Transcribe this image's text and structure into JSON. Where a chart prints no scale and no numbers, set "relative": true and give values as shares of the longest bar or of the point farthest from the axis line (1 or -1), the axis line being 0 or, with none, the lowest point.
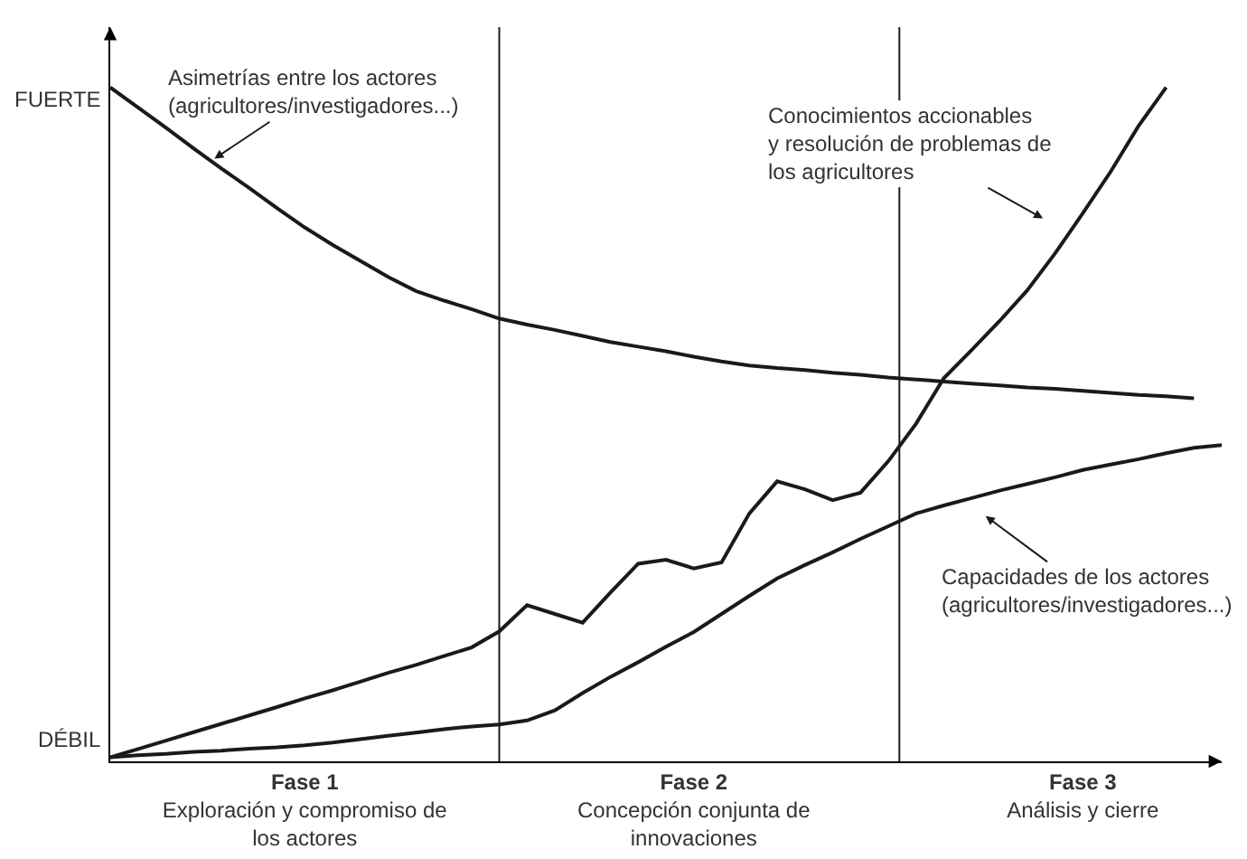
{
  "chart_data": {
    "type": "line",
    "relative": true,
    "tick_labels": "x",
    "marker": "none",
    "line_style": "solid",
    "categories": [
      null,
      null,
      null,
      null,
      null,
      null,
      null,
      "Fase 1\nExploración y compromiso de\nlos actores",
      null,
      null,
      null,
      null,
      null,
      null,
      null,
      null,
      null,
      null,
      null,
      null,
      null,
      "Fase 2\nConcepción conjunta de\ninnovaciones",
      null,
      null,
      null,
      null,
      null,
      null,
      null,
      null,
      null,
      null,
      null,
      null,
      null,
      "Fase 3\nAnálisis y cierre",
      null,
      null,
      null,
      null,
      null
    ],
    "series": [
      {
        "color": "#1a1a1a",
        "values": [
          1.0,
          0.97,
          0.94,
          0.909,
          0.879,
          0.85,
          0.82,
          0.791,
          0.765,
          0.741,
          0.717,
          0.696,
          0.682,
          0.669,
          0.655,
          0.646,
          0.638,
          0.629,
          0.62,
          0.613,
          0.606,
          0.598,
          0.591,
          0.585,
          0.581,
          0.578,
          0.574,
          0.571,
          0.567,
          0.564,
          0.561,
          0.558,
          0.555,
          0.552,
          0.55,
          0.547,
          0.544,
          0.541,
          0.539,
          0.536,
          null
        ]
      },
      {
        "color": "#1a1a1a",
        "values": [
          0,
          0.0125,
          0.025,
          0.0375,
          0.05,
          0.0625,
          0.075,
          0.088,
          0.1,
          0.113,
          0.126,
          0.138,
          0.151,
          0.164,
          0.188,
          0.227,
          0.214,
          0.201,
          0.246,
          0.289,
          0.295,
          0.282,
          0.291,
          0.364,
          0.412,
          0.4,
          0.384,
          0.395,
          0.442,
          0.498,
          0.566,
          0.608,
          0.651,
          0.697,
          0.752,
          0.812,
          0.874,
          0.942,
          1.0,
          null,
          null
        ]
      },
      {
        "color": "#1a1a1a",
        "values": [
          0,
          0.003,
          0.005,
          0.008,
          0.01,
          0.013,
          0.015,
          0.018,
          0.022,
          0.027,
          0.032,
          0.037,
          0.042,
          0.046,
          0.049,
          0.055,
          0.07,
          0.096,
          0.12,
          0.142,
          0.165,
          0.187,
          0.214,
          0.241,
          0.267,
          0.287,
          0.306,
          0.326,
          0.345,
          0.364,
          0.376,
          0.387,
          0.398,
          0.408,
          0.418,
          0.429,
          0.437,
          0.445,
          0.454,
          0.462,
          0.466
        ]
      }
    ],
    "annotations": [
      "FUERTE",
      "DÉBIL",
      "Asimetrías entre los actores\n(agricultores/investigadores...)",
      "Conocimientos accionables\ny resolución de problemas de\nlos agricultores",
      "Capacidades de los actores\n(agricultores/investigadores...)"
    ]
  }
}
